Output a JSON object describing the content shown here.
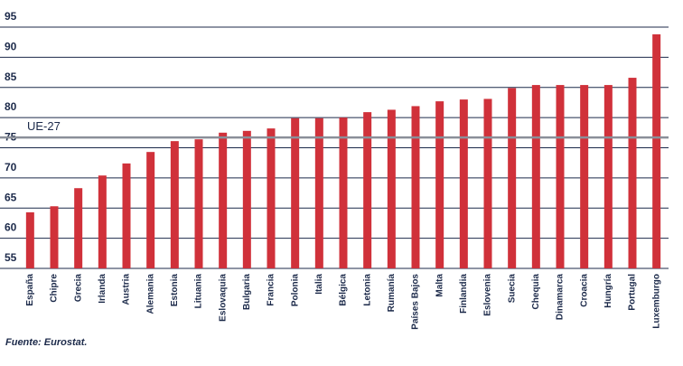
{
  "chart_data": {
    "type": "bar",
    "categories": [
      "España",
      "Chipre",
      "Grecia",
      "Irlanda",
      "Austria",
      "Alemania",
      "Estonia",
      "Lituania",
      "Eslovaquia",
      "Bulgaria",
      "Francia",
      "Polonia",
      "Italia",
      "Bélgica",
      "Letonia",
      "Rumanía",
      "Países Bajos",
      "Malta",
      "Finlandia",
      "Eslovenia",
      "Suecia",
      "Chequia",
      "Dinamarca",
      "Croacia",
      "Hungría",
      "Portugal",
      "Luxemburgo"
    ],
    "values": [
      64.3,
      65.3,
      68.3,
      70.4,
      72.4,
      74.3,
      76.1,
      76.4,
      77.5,
      77.8,
      78.2,
      79.9,
      79.9,
      80.0,
      80.9,
      81.3,
      81.9,
      82.7,
      83.0,
      83.1,
      84.9,
      85.4,
      85.4,
      85.4,
      85.4,
      86.6,
      93.8
    ],
    "color": "#d0313a",
    "ylim": [
      55,
      95
    ],
    "yticks": [
      55,
      60,
      65,
      70,
      75,
      80,
      85,
      90,
      95
    ],
    "grid": true,
    "reference": {
      "label": "UE-27",
      "value": 76.7
    },
    "source": "Fuente: Eurostat."
  }
}
